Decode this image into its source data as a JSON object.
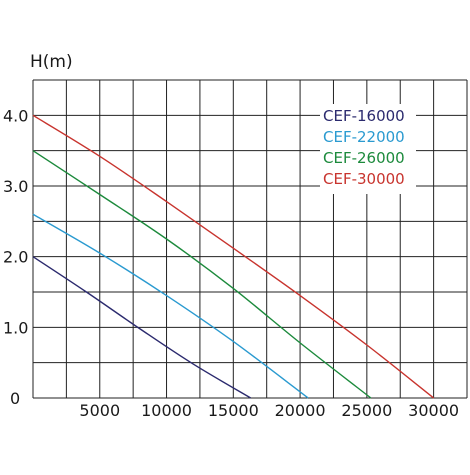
{
  "chart_data": {
    "type": "line",
    "ylabel": "H(m)",
    "xlabel": "",
    "xlim": [
      0,
      30000
    ],
    "ylim": [
      0,
      4.0
    ],
    "x_ticks": [
      5000,
      10000,
      15000,
      20000,
      25000,
      30000
    ],
    "x_tick_labels": [
      "5000",
      "10000",
      "15000",
      "20000",
      "25000",
      "30000"
    ],
    "y_ticks": [
      0,
      1.0,
      2.0,
      3.0,
      4.0
    ],
    "y_tick_labels": [
      "0",
      "1.0",
      "2.0",
      "3.0",
      "4.0"
    ],
    "grid": true,
    "legend_position": "top-right",
    "series": [
      {
        "name": "CEF-16000",
        "color": "#2b2a6e",
        "x": [
          0,
          4000,
          8000,
          12000,
          16300
        ],
        "y": [
          2.0,
          1.5,
          0.98,
          0.48,
          0.0
        ]
      },
      {
        "name": "CEF-22000",
        "color": "#2a9ad0",
        "x": [
          0,
          5000,
          10000,
          15000,
          20600
        ],
        "y": [
          2.6,
          2.05,
          1.45,
          0.8,
          0.0
        ]
      },
      {
        "name": "CEF-26000",
        "color": "#1c8a3c",
        "x": [
          0,
          5000,
          10000,
          15000,
          20000,
          25300
        ],
        "y": [
          3.5,
          2.88,
          2.25,
          1.55,
          0.78,
          0.0
        ]
      },
      {
        "name": "CEF-30000",
        "color": "#c8342e",
        "x": [
          0,
          5000,
          10000,
          15000,
          20000,
          25000,
          30000
        ],
        "y": [
          4.0,
          3.42,
          2.78,
          2.12,
          1.45,
          0.75,
          0.0
        ]
      }
    ]
  }
}
